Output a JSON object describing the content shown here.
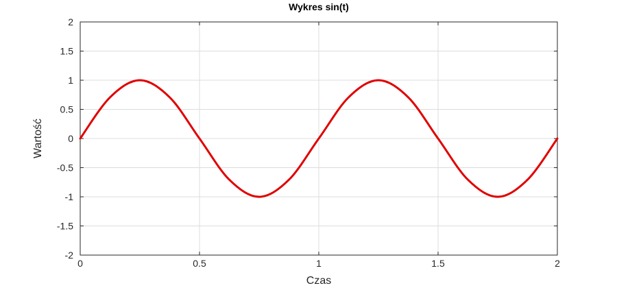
{
  "chart_data": {
    "type": "line",
    "title": "Wykres sin(t)",
    "xlabel": "Czas",
    "ylabel": "Wartość",
    "xlim": [
      0,
      2
    ],
    "ylim": [
      -2,
      2
    ],
    "grid": true,
    "x_ticks": [
      0,
      0.5,
      1,
      1.5,
      2
    ],
    "x_tick_labels": [
      "0",
      "0.5",
      "1",
      "1.5",
      "2"
    ],
    "y_ticks": [
      -2,
      -1.5,
      -1,
      -0.5,
      0,
      0.5,
      1,
      1.5,
      2
    ],
    "y_tick_labels": [
      "-2",
      "-1.5",
      "-1",
      "-0.5",
      "0",
      "0.5",
      "1",
      "1.5",
      "2"
    ],
    "series": [
      {
        "color": "#e00000",
        "x": [
          0,
          0.125,
          0.25,
          0.375,
          0.5,
          0.625,
          0.75,
          0.875,
          1,
          1.125,
          1.25,
          1.375,
          1.5,
          1.625,
          1.75,
          1.875,
          2
        ],
        "y": [
          0,
          0.707,
          1,
          0.707,
          0,
          -0.707,
          -1,
          -0.707,
          0,
          0.707,
          1,
          0.707,
          0,
          -0.707,
          -1,
          -0.707,
          0
        ]
      }
    ]
  }
}
